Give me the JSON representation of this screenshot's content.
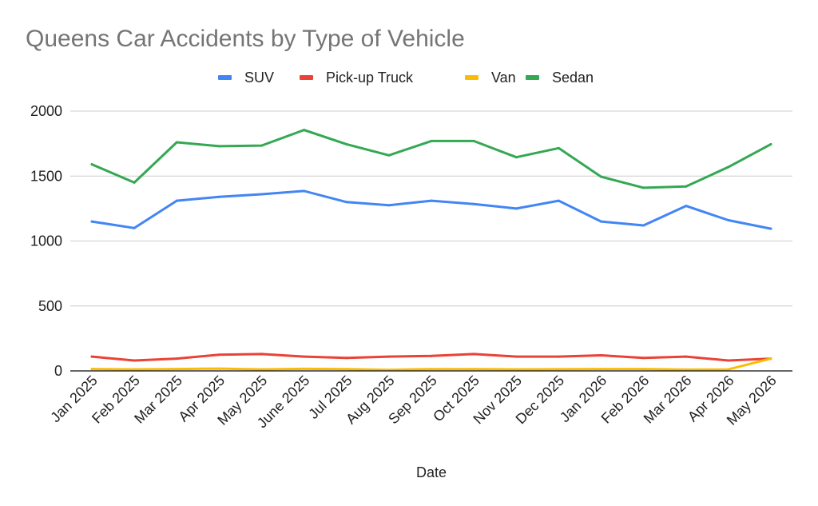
{
  "chart_data": {
    "type": "line",
    "title": "Queens Car Accidents by Type of Vehicle",
    "xlabel": "Date",
    "ylabel": "",
    "ylim": [
      0,
      2000
    ],
    "yticks": [
      0,
      500,
      1000,
      1500,
      2000
    ],
    "grid": true,
    "legend_position": "top",
    "categories": [
      "Jan 2025",
      "Feb 2025",
      "Mar 2025",
      "Apr 2025",
      "May 2025",
      "June 2025",
      "Jul 2025",
      "Aug 2025",
      "Sep 2025",
      "Oct 2025",
      "Nov 2025",
      "Dec 2025",
      "Jan 2026",
      "Feb 2026",
      "Mar 2026",
      "Apr 2026",
      "May 2026"
    ],
    "series": [
      {
        "name": "SUV",
        "color": "#4285f4",
        "values": [
          1150,
          1100,
          1310,
          1340,
          1360,
          1385,
          1300,
          1275,
          1310,
          1285,
          1250,
          1310,
          1150,
          1120,
          1270,
          1160,
          1095
        ]
      },
      {
        "name": "Pick-up Truck",
        "color": "#ea4335",
        "values": [
          110,
          80,
          95,
          125,
          130,
          110,
          100,
          110,
          115,
          130,
          110,
          110,
          120,
          100,
          110,
          80,
          95
        ]
      },
      {
        "name": "Van",
        "color": "#fbbc04",
        "values": [
          15,
          12,
          15,
          18,
          12,
          16,
          14,
          8,
          14,
          14,
          12,
          13,
          15,
          15,
          10,
          12,
          95
        ]
      },
      {
        "name": "Sedan",
        "color": "#34a853",
        "values": [
          1590,
          1450,
          1760,
          1730,
          1735,
          1855,
          1745,
          1660,
          1770,
          1770,
          1645,
          1715,
          1495,
          1410,
          1420,
          1570,
          1745
        ]
      }
    ]
  }
}
